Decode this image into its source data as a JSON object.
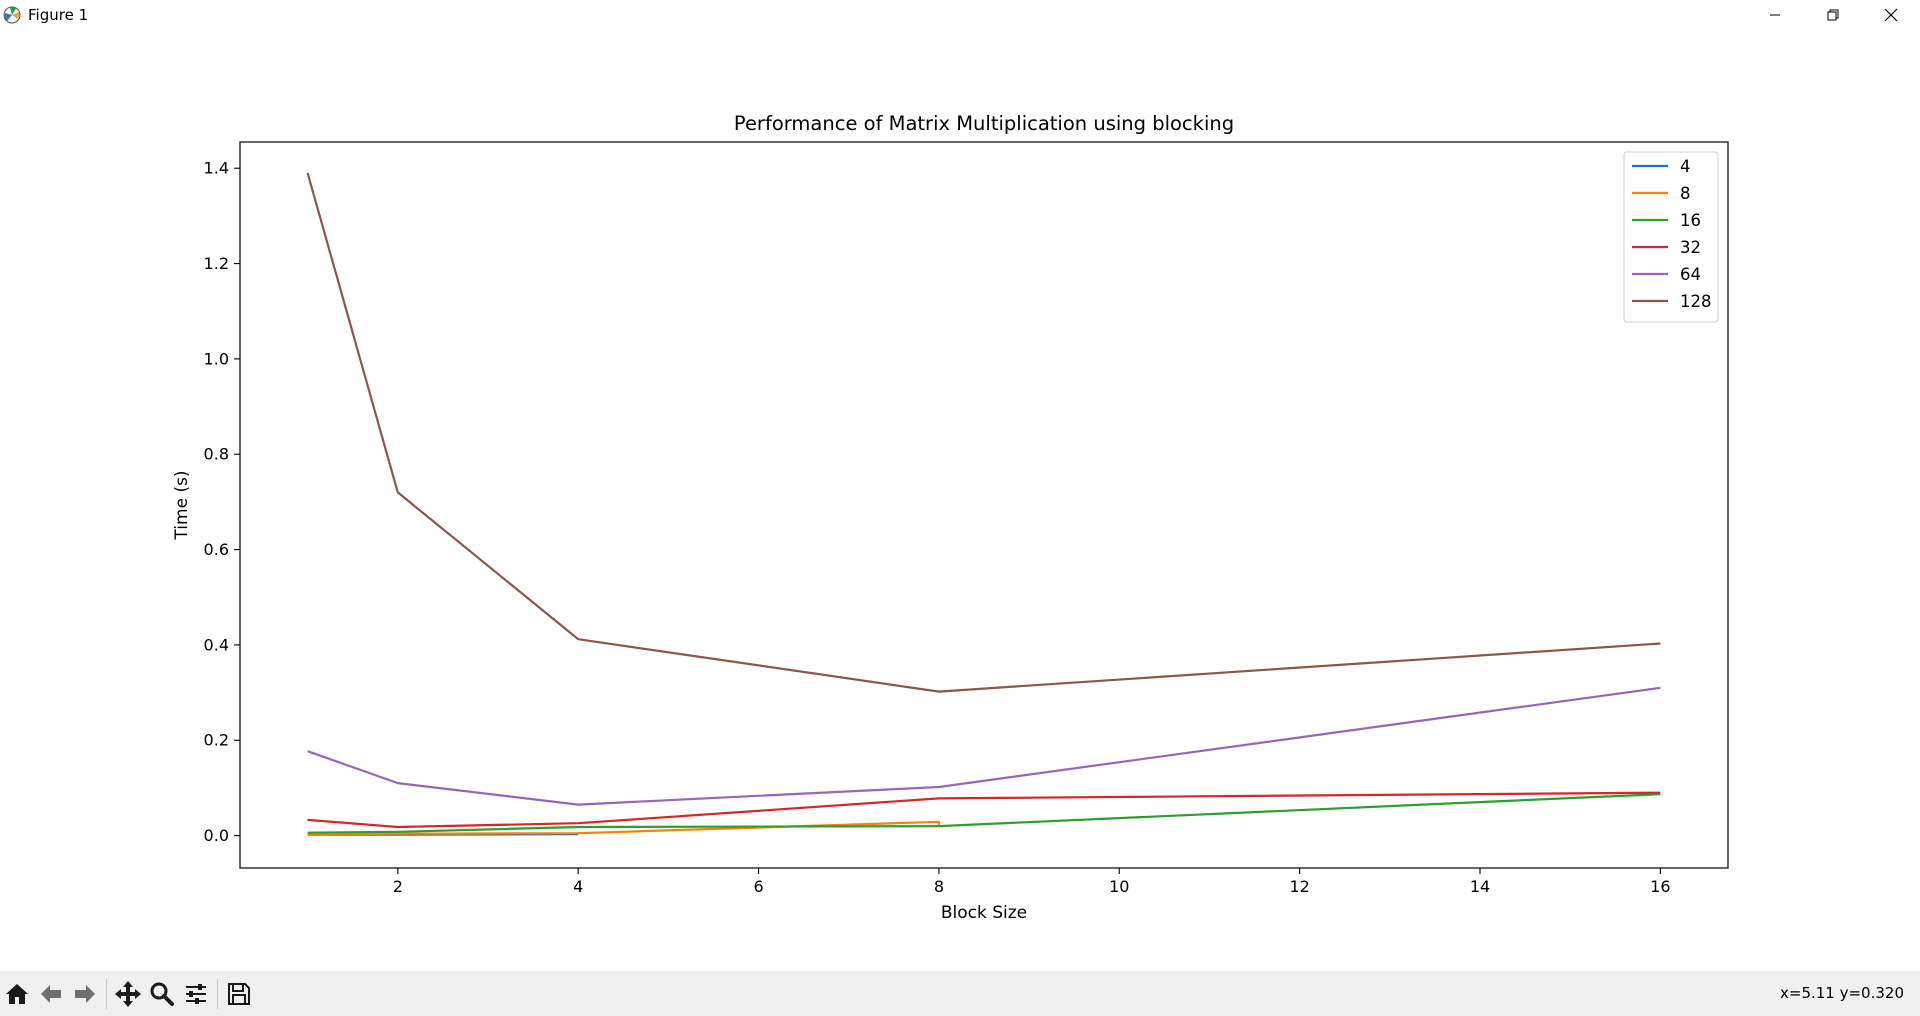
{
  "window": {
    "title": "Figure 1",
    "controls": [
      "minimize",
      "restore",
      "close"
    ]
  },
  "toolbar": {
    "buttons": [
      "home-icon",
      "back-arrow-icon",
      "forward-arrow-icon",
      "pan-icon",
      "zoom-icon",
      "configure-subplots-icon",
      "save-icon"
    ],
    "coords": "x=5.11 y=0.320"
  },
  "chart_data": {
    "type": "line",
    "title": "Performance of Matrix Multiplication using blocking",
    "xlabel": "Block Size",
    "ylabel": "Time (s)",
    "xlim": [
      0.25,
      16.75
    ],
    "ylim": [
      -0.068,
      1.455
    ],
    "xticks": [
      2,
      4,
      6,
      8,
      10,
      12,
      14,
      16
    ],
    "yticks": [
      0.0,
      0.2,
      0.4,
      0.6,
      0.8,
      1.0,
      1.2,
      1.4
    ],
    "ytick_labels": [
      "0.0",
      "0.2",
      "0.4",
      "0.6",
      "0.8",
      "1.0",
      "1.2",
      "1.4"
    ],
    "grid": false,
    "legend_position": "upper right",
    "series": [
      {
        "name": "4",
        "color": "#1f77b4",
        "x": [
          1,
          2,
          4
        ],
        "y": [
          0.002,
          0.002,
          0.003
        ]
      },
      {
        "name": "8",
        "color": "#ff7f0e",
        "x": [
          1,
          2,
          4,
          8,
          8
        ],
        "y": [
          0.003,
          0.004,
          0.005,
          0.029,
          0.02
        ]
      },
      {
        "name": "16",
        "color": "#2ca02c",
        "x": [
          1,
          2,
          4,
          8,
          16
        ],
        "y": [
          0.006,
          0.008,
          0.018,
          0.02,
          0.087
        ]
      },
      {
        "name": "32",
        "color": "#d62728",
        "x": [
          1,
          2,
          4,
          8,
          16
        ],
        "y": [
          0.033,
          0.018,
          0.026,
          0.078,
          0.09
        ]
      },
      {
        "name": "64",
        "color": "#9467bd",
        "x": [
          1,
          2,
          4,
          8,
          16
        ],
        "y": [
          0.177,
          0.11,
          0.065,
          0.102,
          0.31
        ]
      },
      {
        "name": "128",
        "color": "#8c564b",
        "x": [
          1,
          2,
          4,
          8,
          16
        ],
        "y": [
          1.39,
          0.72,
          0.412,
          0.302,
          0.403
        ]
      }
    ]
  }
}
